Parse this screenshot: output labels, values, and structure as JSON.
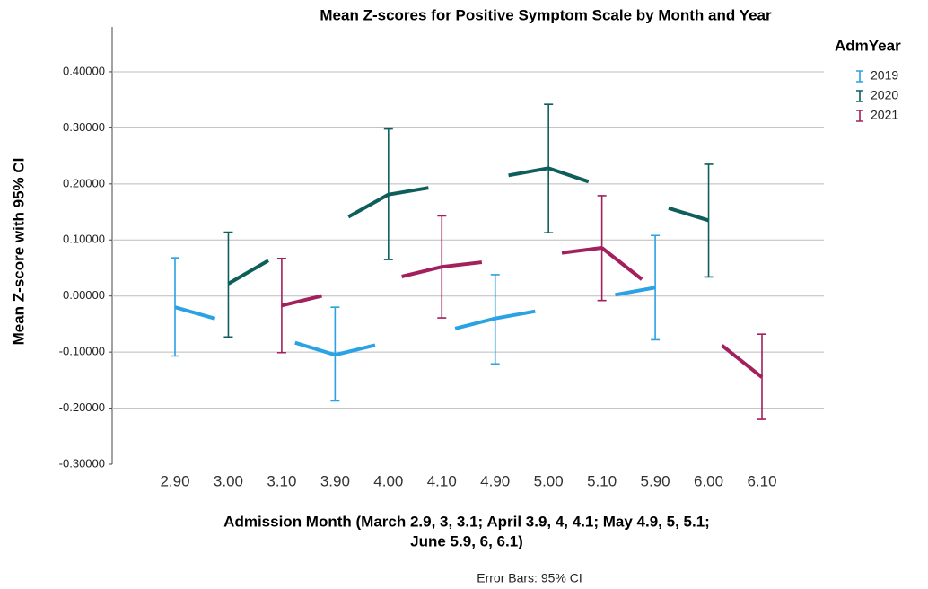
{
  "chart_data": {
    "type": "errorbar-line",
    "title": "Mean Z-scores for Positive Symptom Scale by Month and Year",
    "xlabel": [
      "Admission Month (March 2.9, 3, 3.1; April 3.9, 4, 4.1; May 4.9, 5, 5.1;",
      "June 5.9, 6, 6.1)"
    ],
    "ylabel": "Mean Z-score with 95% CI",
    "footnote": "Error Bars: 95% CI",
    "legend_title": "AdmYear",
    "legend_position": "right",
    "grid": true,
    "categories": [
      "2.90",
      "3.00",
      "3.10",
      "3.90",
      "4.00",
      "4.10",
      "4.90",
      "5.00",
      "5.10",
      "5.90",
      "6.00",
      "6.10"
    ],
    "ylim": [
      -0.3,
      0.48
    ],
    "yticks": [
      {
        "value": -0.3,
        "label": "-0.30000"
      },
      {
        "value": -0.2,
        "label": "-0.20000"
      },
      {
        "value": -0.1,
        "label": "-0.10000"
      },
      {
        "value": 0,
        "label": "0.00000"
      },
      {
        "value": 0.1,
        "label": "0.10000"
      },
      {
        "value": 0.2,
        "label": "0.20000"
      },
      {
        "value": 0.3,
        "label": "0.30000"
      },
      {
        "value": 0.4,
        "label": "0.40000"
      }
    ],
    "series": [
      {
        "name": "2019",
        "color": "#2aa2e4",
        "values": [
          -0.02,
          -0.047,
          -0.076,
          -0.105,
          -0.082,
          -0.064,
          -0.04,
          -0.023,
          -0.002,
          0.015,
          null,
          null
        ],
        "lower": [
          -0.107,
          null,
          null,
          -0.187,
          null,
          null,
          -0.121,
          null,
          null,
          -0.078,
          null,
          null
        ],
        "upper": [
          0.068,
          null,
          null,
          -0.02,
          null,
          null,
          0.038,
          null,
          null,
          0.108,
          null,
          null
        ]
      },
      {
        "name": "2020",
        "color": "#0e5f5b",
        "values": [
          null,
          0.022,
          0.077,
          0.128,
          0.181,
          0.197,
          0.211,
          0.228,
          0.196,
          0.164,
          0.135,
          null
        ],
        "lower": [
          null,
          -0.073,
          null,
          null,
          0.065,
          null,
          null,
          0.113,
          null,
          null,
          0.034,
          null
        ],
        "upper": [
          null,
          0.114,
          null,
          null,
          0.298,
          null,
          null,
          0.342,
          null,
          null,
          0.235,
          null
        ]
      },
      {
        "name": "2021",
        "color": "#a2205d",
        "values": [
          null,
          null,
          -0.017,
          0.006,
          0.029,
          0.052,
          0.063,
          0.074,
          0.086,
          0.011,
          -0.069,
          -0.145
        ],
        "lower": [
          null,
          null,
          -0.101,
          null,
          null,
          -0.039,
          null,
          null,
          -0.008,
          null,
          null,
          -0.22
        ],
        "upper": [
          null,
          null,
          0.067,
          null,
          null,
          0.143,
          null,
          null,
          0.179,
          null,
          null,
          -0.068
        ]
      }
    ]
  }
}
